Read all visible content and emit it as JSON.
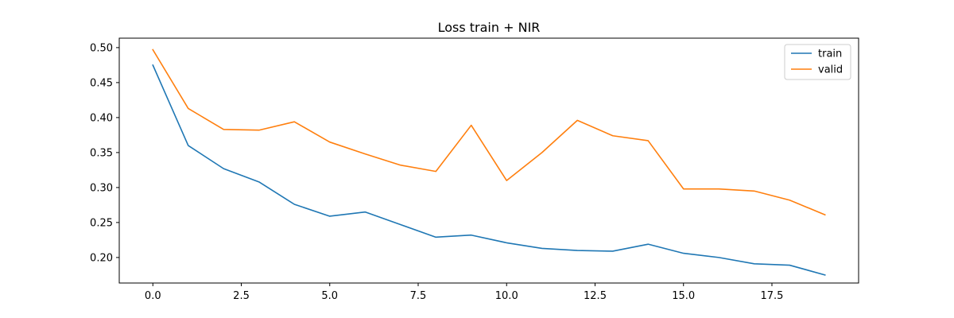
{
  "chart_data": {
    "type": "line",
    "title": "Loss train + NIR",
    "xlabel": "",
    "ylabel": "",
    "xlim": [
      -0.95,
      19.95
    ],
    "ylim": [
      0.1635,
      0.5135
    ],
    "xticks": [
      0.0,
      2.5,
      5.0,
      7.5,
      10.0,
      12.5,
      15.0,
      17.5
    ],
    "xtick_labels": [
      "0.0",
      "2.5",
      "5.0",
      "7.5",
      "10.0",
      "12.5",
      "15.0",
      "17.5"
    ],
    "yticks": [
      0.2,
      0.25,
      0.3,
      0.35,
      0.4,
      0.45,
      0.5
    ],
    "ytick_labels": [
      "0.20",
      "0.25",
      "0.30",
      "0.35",
      "0.40",
      "0.45",
      "0.50"
    ],
    "grid": false,
    "legend_position": "top-right",
    "x": [
      0,
      1,
      2,
      3,
      4,
      5,
      6,
      7,
      8,
      9,
      10,
      11,
      12,
      13,
      14,
      15,
      16,
      17,
      18,
      19
    ],
    "series": [
      {
        "name": "train",
        "color": "#1f77b4",
        "values": [
          0.475,
          0.36,
          0.327,
          0.308,
          0.276,
          0.259,
          0.265,
          0.247,
          0.229,
          0.232,
          0.221,
          0.213,
          0.21,
          0.209,
          0.219,
          0.206,
          0.2,
          0.191,
          0.189,
          0.175
        ]
      },
      {
        "name": "valid",
        "color": "#ff7f0e",
        "values": [
          0.497,
          0.413,
          0.383,
          0.382,
          0.394,
          0.365,
          0.348,
          0.332,
          0.323,
          0.389,
          0.31,
          0.35,
          0.396,
          0.374,
          0.367,
          0.298,
          0.298,
          0.295,
          0.282,
          0.261
        ]
      }
    ]
  }
}
